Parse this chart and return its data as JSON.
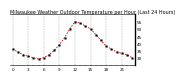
{
  "title": "Milwaukee Weather Outdoor Temperature per Hour (Last 24 Hours)",
  "hours": [
    0,
    1,
    2,
    3,
    4,
    5,
    6,
    7,
    8,
    9,
    10,
    11,
    12,
    13,
    14,
    15,
    16,
    17,
    18,
    19,
    20,
    21,
    22,
    23
  ],
  "temps": [
    36,
    34,
    32,
    31,
    30,
    29,
    30,
    32,
    35,
    39,
    44,
    50,
    55,
    54,
    52,
    50,
    46,
    42,
    38,
    36,
    34,
    33,
    32,
    30
  ],
  "line_color": "#cc0000",
  "marker_color": "#000000",
  "bg_color": "#ffffff",
  "grid_color": "#777777",
  "ylim": [
    25,
    60
  ],
  "yticks": [
    30,
    35,
    40,
    45,
    50,
    55
  ],
  "title_fontsize": 3.5,
  "tick_fontsize": 3.0
}
